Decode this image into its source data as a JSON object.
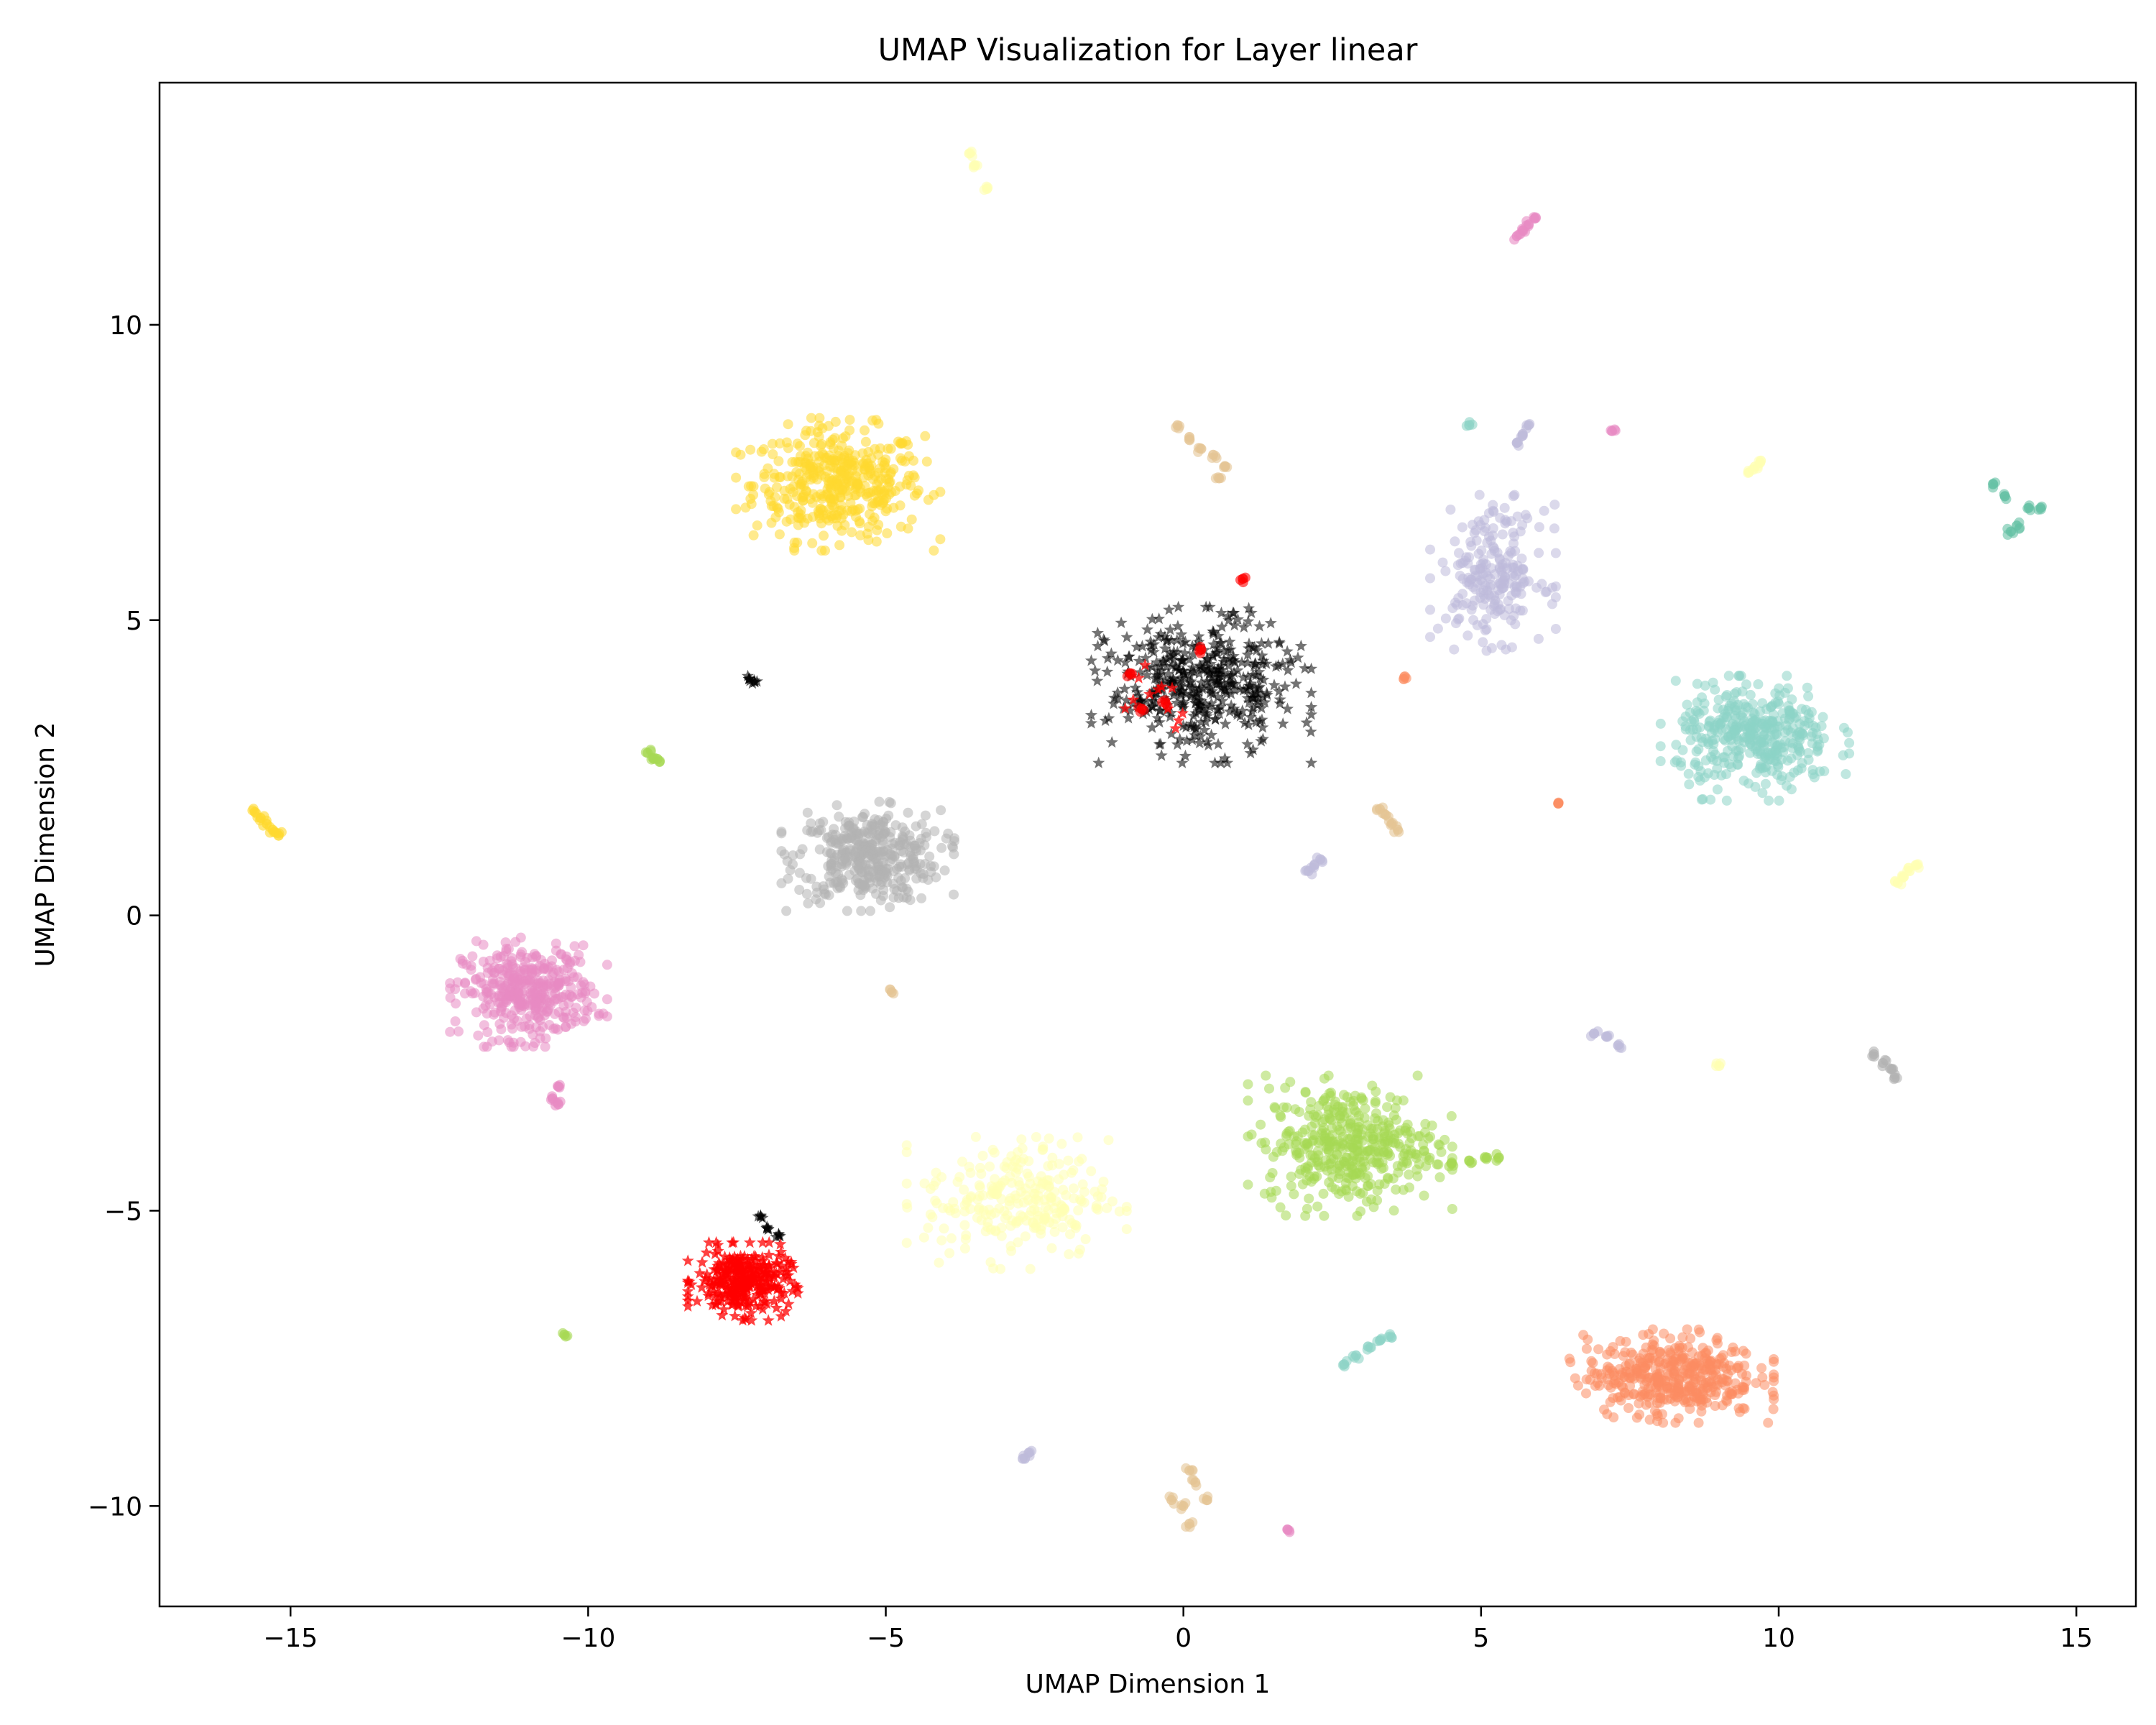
{
  "chart_data": {
    "type": "scatter",
    "title": "UMAP Visualization for Layer linear",
    "xlabel": "UMAP Dimension 1",
    "ylabel": "UMAP Dimension 2",
    "xlim": [
      -17.2,
      16.0
    ],
    "ylim": [
      -11.7,
      14.1
    ],
    "xticks": [
      -15,
      -10,
      -5,
      0,
      5,
      10,
      15
    ],
    "xtick_labels": [
      "−15",
      "−10",
      "−5",
      "0",
      "5",
      "10",
      "15"
    ],
    "yticks": [
      -10,
      -5,
      0,
      5,
      10
    ],
    "ytick_labels": [
      "−10",
      "−5",
      "0",
      "5",
      "10"
    ],
    "grid": false,
    "clusters": [
      {
        "name": "yellow",
        "color": "#ffd92f",
        "cx": -5.8,
        "cy": 7.3,
        "rx": 1.3,
        "ry": 0.85,
        "n": 420
      },
      {
        "name": "gray",
        "color": "#b3b3b3",
        "cx": -5.3,
        "cy": 1.0,
        "rx": 1.1,
        "ry": 0.7,
        "n": 380
      },
      {
        "name": "pink",
        "color": "#e78ac3",
        "cx": -11.0,
        "cy": -1.3,
        "rx": 1.0,
        "ry": 0.7,
        "n": 380
      },
      {
        "name": "red",
        "color": "#ff0000",
        "cx": -7.4,
        "cy": -6.2,
        "rx": 0.7,
        "ry": 0.5,
        "n": 320
      },
      {
        "name": "light-yellow",
        "color": "#ffffb3",
        "cx": -2.8,
        "cy": -4.8,
        "rx": 1.4,
        "ry": 0.9,
        "n": 260
      },
      {
        "name": "green",
        "color": "#a6d854",
        "cx": 2.8,
        "cy": -3.9,
        "rx": 1.3,
        "ry": 0.9,
        "n": 420
      },
      {
        "name": "orange",
        "color": "#fc8d62",
        "cx": 8.2,
        "cy": -7.8,
        "rx": 1.3,
        "ry": 0.6,
        "n": 420
      },
      {
        "name": "teal",
        "color": "#8dd3c7",
        "cx": 9.6,
        "cy": 3.0,
        "rx": 1.2,
        "ry": 0.8,
        "n": 380
      },
      {
        "name": "lavender",
        "color": "#bebada",
        "cx": 5.2,
        "cy": 5.8,
        "rx": 0.8,
        "ry": 1.0,
        "n": 220
      },
      {
        "name": "black",
        "color": "#000000",
        "cx": 0.3,
        "cy": 3.9,
        "rx": 1.4,
        "ry": 1.0,
        "n": 440
      },
      {
        "name": "red-inner",
        "color": "#ff0000",
        "cx": -0.4,
        "cy": 3.8,
        "rx": 0.6,
        "ry": 0.5,
        "n": 12
      }
    ],
    "small_groups": [
      {
        "color": "#ffffb3",
        "x": [
          -3.6,
          -3.5,
          -3.3
        ],
        "y": [
          12.9,
          12.7,
          12.3
        ]
      },
      {
        "color": "#e78ac3",
        "x": [
          5.6,
          5.7,
          5.8,
          5.9
        ],
        "y": [
          11.5,
          11.6,
          11.7,
          11.8
        ]
      },
      {
        "color": "#e5c494",
        "x": [
          -0.1,
          0.1,
          0.3,
          0.5,
          0.7,
          0.6
        ],
        "y": [
          8.3,
          8.1,
          7.9,
          7.8,
          7.6,
          7.4
        ]
      },
      {
        "color": "#bebada",
        "x": [
          5.6,
          5.7,
          5.8
        ],
        "y": [
          8.0,
          8.15,
          8.3
        ]
      },
      {
        "color": "#8dd3c7",
        "x": [
          4.8
        ],
        "y": [
          8.3
        ]
      },
      {
        "color": "#e78ac3",
        "x": [
          7.2
        ],
        "y": [
          8.2
        ]
      },
      {
        "color": "#ffffb3",
        "x": [
          9.5,
          9.6,
          9.7
        ],
        "y": [
          7.5,
          7.6,
          7.7
        ]
      },
      {
        "color": "#66c2a5",
        "x": [
          13.6,
          13.8,
          14.0,
          14.2,
          14.4,
          13.9
        ],
        "y": [
          7.3,
          7.1,
          6.6,
          6.9,
          6.9,
          6.5
        ]
      },
      {
        "color": "#fc8d62",
        "x": [
          3.7
        ],
        "y": [
          4.0
        ]
      },
      {
        "color": "#000000",
        "x": [
          -7.3,
          -7.2
        ],
        "y": [
          4.0,
          3.95
        ]
      },
      {
        "color": "#a6d854",
        "x": [
          -9.0,
          -8.9,
          -8.8
        ],
        "y": [
          2.75,
          2.65,
          2.6
        ]
      },
      {
        "color": "#ffd92f",
        "x": [
          -15.6,
          -15.5,
          -15.4,
          -15.3,
          -15.2
        ],
        "y": [
          1.75,
          1.65,
          1.55,
          1.45,
          1.35
        ]
      },
      {
        "color": "#e5c494",
        "x": [
          3.3,
          3.4,
          3.5,
          3.6
        ],
        "y": [
          1.8,
          1.7,
          1.55,
          1.45
        ]
      },
      {
        "color": "#fc8d62",
        "x": [
          6.3
        ],
        "y": [
          1.9
        ]
      },
      {
        "color": "#bebada",
        "x": [
          2.1,
          2.2,
          2.3
        ],
        "y": [
          0.75,
          0.85,
          0.95
        ]
      },
      {
        "color": "#ffffb3",
        "x": [
          12.0,
          12.1,
          12.2,
          12.3
        ],
        "y": [
          0.55,
          0.65,
          0.75,
          0.85
        ]
      },
      {
        "color": "#e5c494",
        "x": [
          -4.9
        ],
        "y": [
          -1.3
        ]
      },
      {
        "color": "#e78ac3",
        "x": [
          -10.6,
          -10.5,
          -10.5
        ],
        "y": [
          -3.1,
          -2.9,
          -3.2
        ]
      },
      {
        "color": "#bebada",
        "x": [
          6.9,
          7.1,
          7.3
        ],
        "y": [
          -2.0,
          -2.05,
          -2.2
        ]
      },
      {
        "color": "#ffffb3",
        "x": [
          9.0
        ],
        "y": [
          -2.55
        ]
      },
      {
        "color": "#b3b3b3",
        "x": [
          11.6,
          11.75,
          11.9,
          11.95
        ],
        "y": [
          -2.35,
          -2.5,
          -2.6,
          -2.75
        ]
      },
      {
        "color": "#a6d854",
        "x": [
          4.5,
          4.8,
          5.1,
          5.3
        ],
        "y": [
          -4.2,
          -4.15,
          -4.1,
          -4.1
        ]
      },
      {
        "color": "#a6d854",
        "x": [
          -10.4
        ],
        "y": [
          -7.1
        ]
      },
      {
        "color": "#8dd3c7",
        "x": [
          2.7,
          2.9,
          3.1,
          3.3,
          3.5
        ],
        "y": [
          -7.6,
          -7.45,
          -7.3,
          -7.2,
          -7.15
        ]
      },
      {
        "color": "#bebada",
        "x": [
          -2.7,
          -2.6
        ],
        "y": [
          -9.2,
          -9.1
        ]
      },
      {
        "color": "#e5c494",
        "x": [
          -0.2,
          0.0,
          0.1,
          0.2,
          0.4,
          0.1
        ],
        "y": [
          -9.9,
          -10.0,
          -10.3,
          -9.6,
          -9.9,
          -9.4
        ]
      },
      {
        "color": "#e78ac3",
        "x": [
          1.75
        ],
        "y": [
          -10.4
        ]
      },
      {
        "color": "#000000",
        "x": [
          -7.1,
          -7.0,
          -6.8
        ],
        "y": [
          -5.1,
          -5.3,
          -5.4
        ]
      },
      {
        "color": "#ff0000",
        "x": [
          -0.9,
          -0.7,
          -0.3,
          0.3,
          1.0
        ],
        "y": [
          4.1,
          3.5,
          3.6,
          4.5,
          5.7
        ]
      }
    ]
  }
}
